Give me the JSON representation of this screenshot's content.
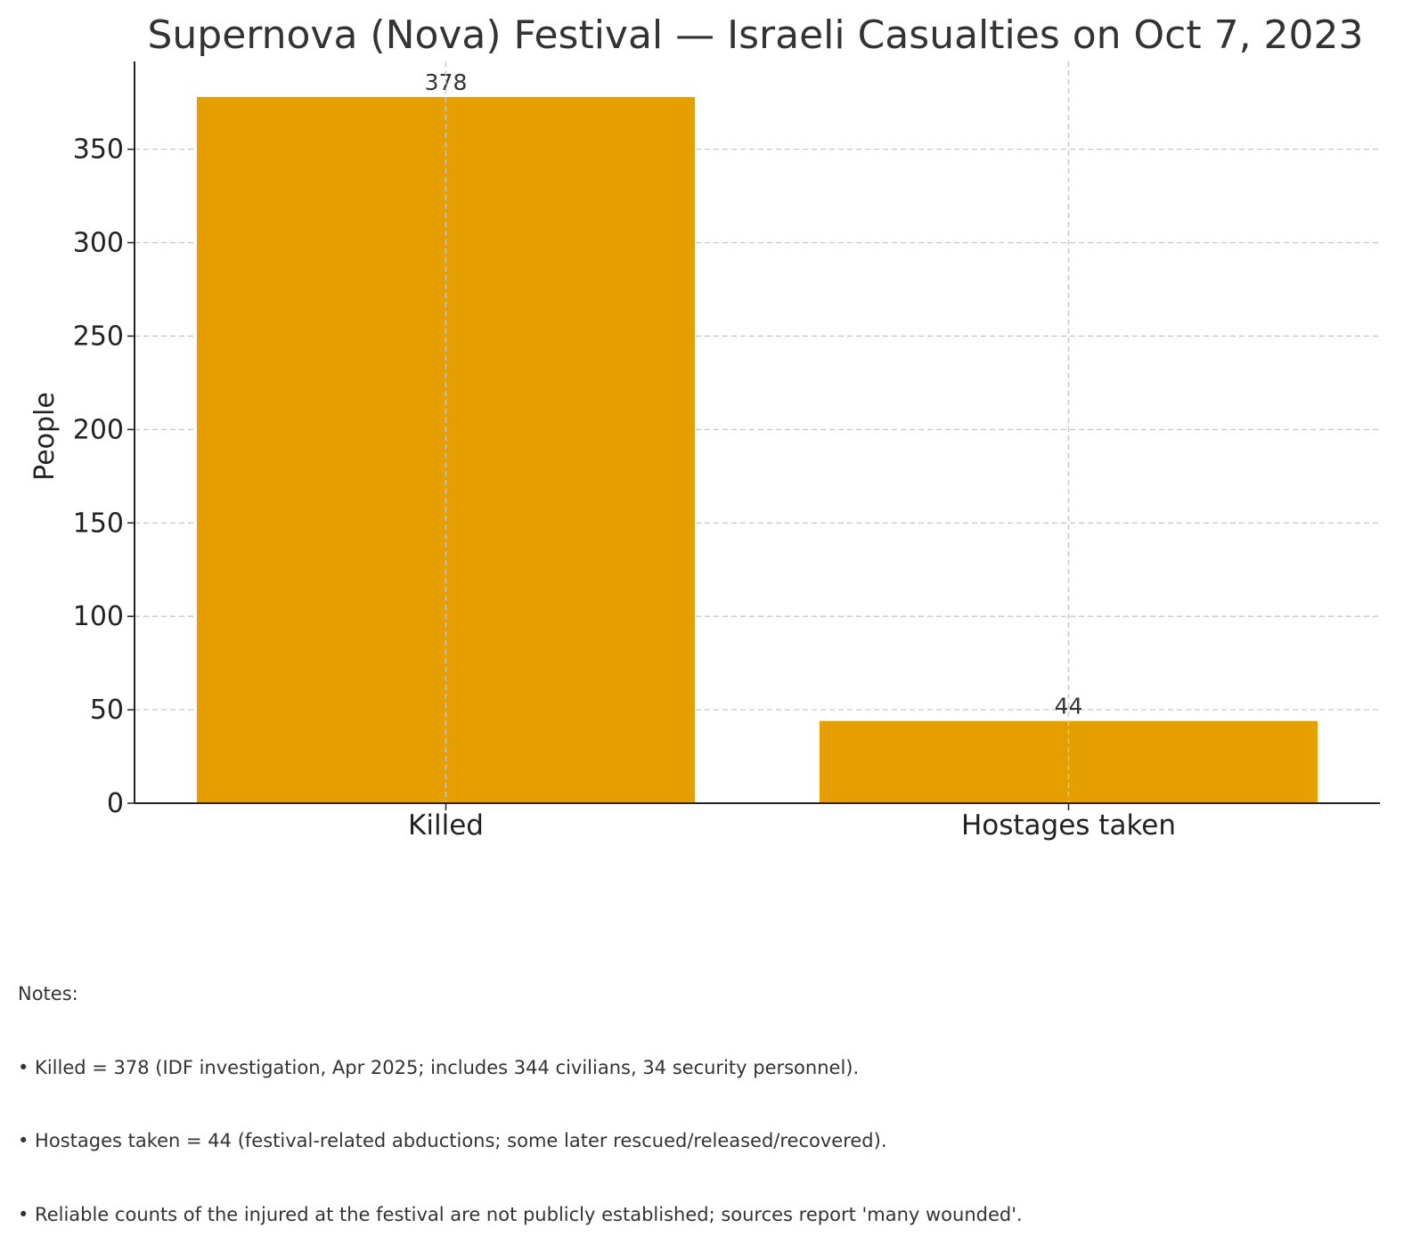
{
  "chart_data": {
    "type": "bar",
    "title": "Supernova (Nova) Festival — Israeli Casualties on Oct 7, 2023",
    "xlabel": "",
    "ylabel": "People",
    "categories": [
      "Killed",
      "Hostages taken"
    ],
    "values": [
      378,
      44
    ],
    "data_labels": [
      "378",
      "44"
    ],
    "ylim": [
      0,
      397
    ],
    "yticks": [
      0,
      50,
      100,
      150,
      200,
      250,
      300,
      350
    ],
    "grid": true,
    "bar_color": "#E69F00"
  },
  "notes": {
    "heading": "Notes:",
    "lines": [
      "• Killed = 378 (IDF investigation, Apr 2025; includes 344 civilians, 34 security personnel).",
      "• Hostages taken = 44 (festival-related abductions; some later rescued/released/recovered).",
      "• Reliable counts of the injured at the festival are not publicly established; sources report 'many wounded'."
    ]
  }
}
